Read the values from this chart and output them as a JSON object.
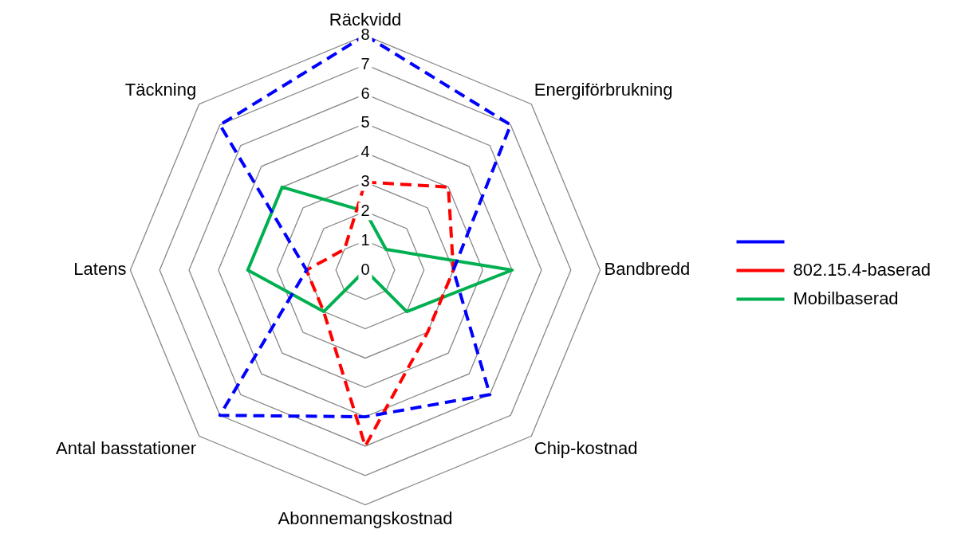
{
  "chart_data": {
    "type": "radar",
    "categories": [
      "Räckvidd",
      "Energiförbrukning",
      "Bandbredd",
      "Chip-kostnad",
      "Abonnemangskostnad",
      "Antal basstationer",
      "Latens",
      "Täckning"
    ],
    "series": [
      {
        "color": "#0000ff",
        "line_style": "dashed",
        "values": [
          8,
          7,
          3,
          6,
          5,
          7,
          2,
          7
        ]
      },
      {
        "name": "802.15.4-baserad",
        "color": "#ff0000",
        "line_style": "dashed",
        "values": [
          3,
          4,
          3,
          3,
          6,
          2,
          2,
          1
        ]
      },
      {
        "name": "Mobilbaserad",
        "color": "#00b050",
        "line_style": "solid",
        "values": [
          2,
          1,
          5,
          2,
          0,
          2,
          4,
          4
        ]
      }
    ],
    "ylim": [
      0,
      8
    ],
    "yticks": [
      0,
      1,
      2,
      3,
      4,
      5,
      6,
      7,
      8
    ],
    "grid": true,
    "legend": "right",
    "marker": "none"
  }
}
